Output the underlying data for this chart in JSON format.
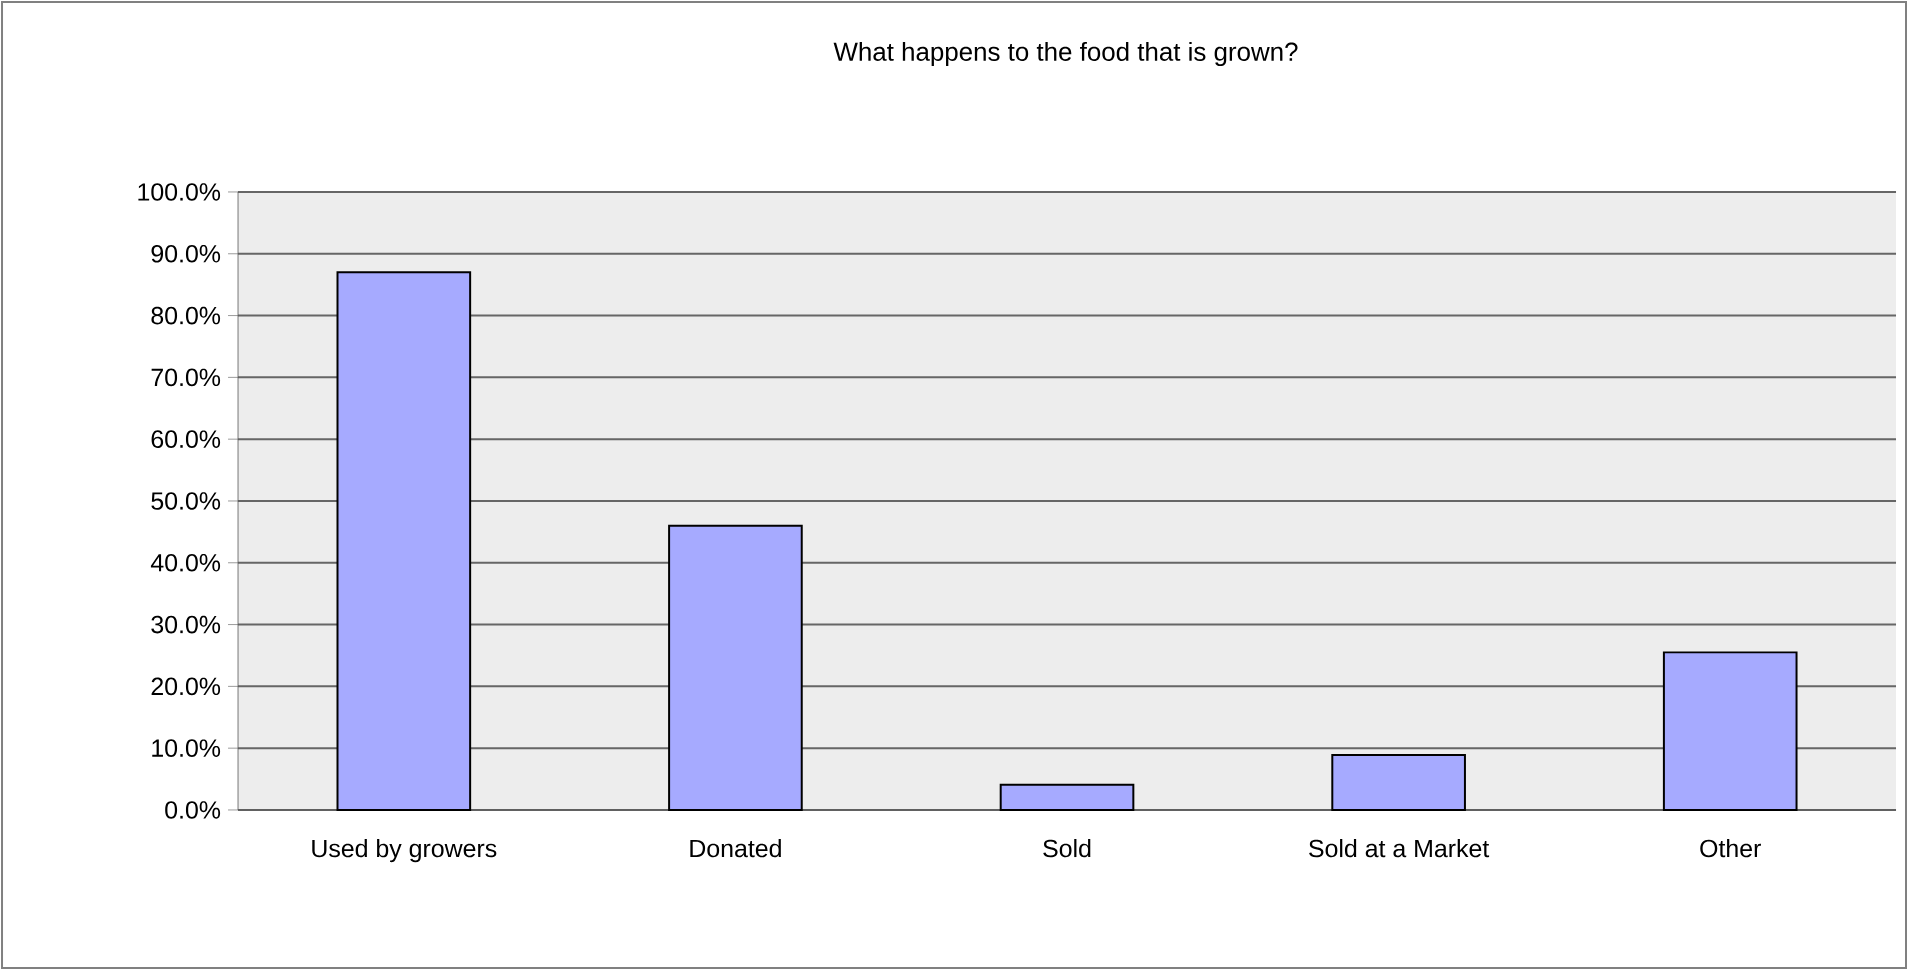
{
  "chart_data": {
    "type": "bar",
    "title": "What happens to the food that is grown?",
    "categories": [
      "Used by growers",
      "Donated",
      "Sold",
      "Sold at a Market",
      "Other"
    ],
    "values": [
      87.0,
      46.0,
      4.1,
      8.9,
      25.5
    ],
    "color": "#a6aaff",
    "ylim": [
      0,
      100
    ],
    "yticks": [
      {
        "value": 0,
        "label": "0.0%"
      },
      {
        "value": 10,
        "label": "10.0%"
      },
      {
        "value": 20,
        "label": "20.0%"
      },
      {
        "value": 30,
        "label": "30.0%"
      },
      {
        "value": 40,
        "label": "40.0%"
      },
      {
        "value": 50,
        "label": "50.0%"
      },
      {
        "value": 60,
        "label": "60.0%"
      },
      {
        "value": 70,
        "label": "70.0%"
      },
      {
        "value": 80,
        "label": "80.0%"
      },
      {
        "value": 90,
        "label": "90.0%"
      },
      {
        "value": 100,
        "label": "100.0%"
      }
    ],
    "grid": "y"
  }
}
